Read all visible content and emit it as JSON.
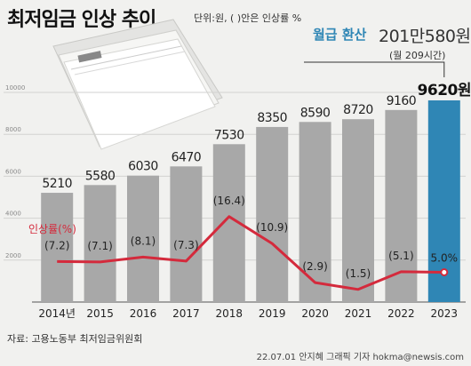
{
  "header": {
    "title": "최저임금 인상 추이",
    "unit_note": "단위:원, ( )안은 인상률 %",
    "conversion_label": "월급 환산",
    "conversion_value": "201만580원",
    "conversion_note": "(월 209시간)"
  },
  "footer": {
    "source": "자료: 고용노동부 최저임금위원회",
    "credit": "22.07.01 안지혜 그래픽 기자 hokma@newsis.com"
  },
  "colors": {
    "bar": "#a8a8a8",
    "bar_highlight": "#2f86b5",
    "line": "#d42a3c",
    "background": "#f1f1ef"
  },
  "chart_data": {
    "type": "bar",
    "title": "최저임금 인상 추이",
    "categories": [
      "2014년",
      "2015",
      "2016",
      "2017",
      "2018",
      "2019",
      "2020",
      "2021",
      "2022",
      "2023"
    ],
    "series": [
      {
        "values": [
          5210,
          5580,
          6030,
          6470,
          7530,
          8350,
          8590,
          8720,
          9160,
          9620
        ],
        "labels": [
          "5210",
          "5580",
          "6030",
          "6470",
          "7530",
          "8350",
          "8590",
          "8720",
          "9160",
          "9620원"
        ]
      },
      {
        "name": "인상률(%)",
        "type": "line",
        "values": [
          7.2,
          7.1,
          8.1,
          7.3,
          16.4,
          10.9,
          2.9,
          1.5,
          5.1,
          5.0
        ],
        "labels": [
          "(7.2)",
          "(7.1)",
          "(8.1)",
          "(7.3)",
          "(16.4)",
          "(10.9)",
          "(2.9)",
          "(1.5)",
          "(5.1)",
          "5.0%"
        ]
      }
    ],
    "y_ticks": [
      "2000",
      "4000",
      "6000",
      "8000",
      "10000"
    ],
    "ylim": [
      0,
      10000
    ],
    "highlight_index": 9,
    "grid": true,
    "legend": "left"
  }
}
